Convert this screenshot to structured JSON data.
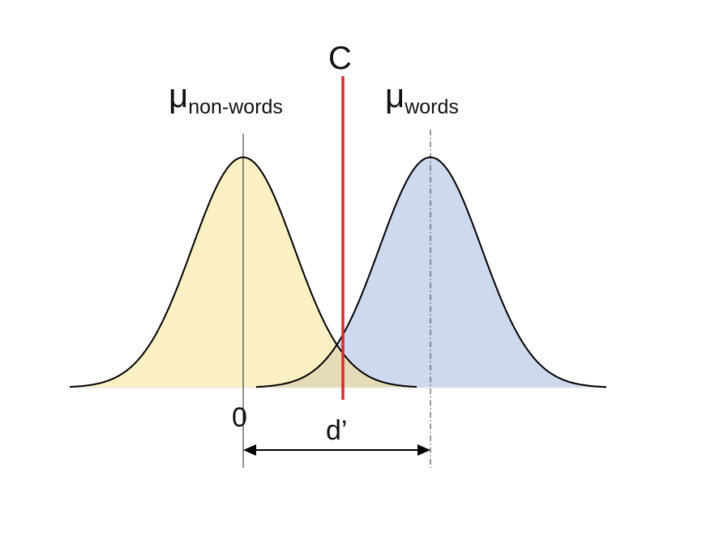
{
  "labels": {
    "criterion": "C",
    "mu_symbol": "μ",
    "mu_nonwords_sub": "non-words",
    "mu_words_sub": "words",
    "zero": "0",
    "d_prime": "d’"
  },
  "colors": {
    "nonwords_fill": "#fbf0c3",
    "words_fill": "#ccd9ee",
    "overlap_fill": "#e6dbb7",
    "curve_stroke": "#000000",
    "criterion_line": "#e0262a"
  },
  "model": {
    "nonwords_mean": 0,
    "words_mean": 1,
    "criterion": 0.53,
    "d_prime": 1
  }
}
